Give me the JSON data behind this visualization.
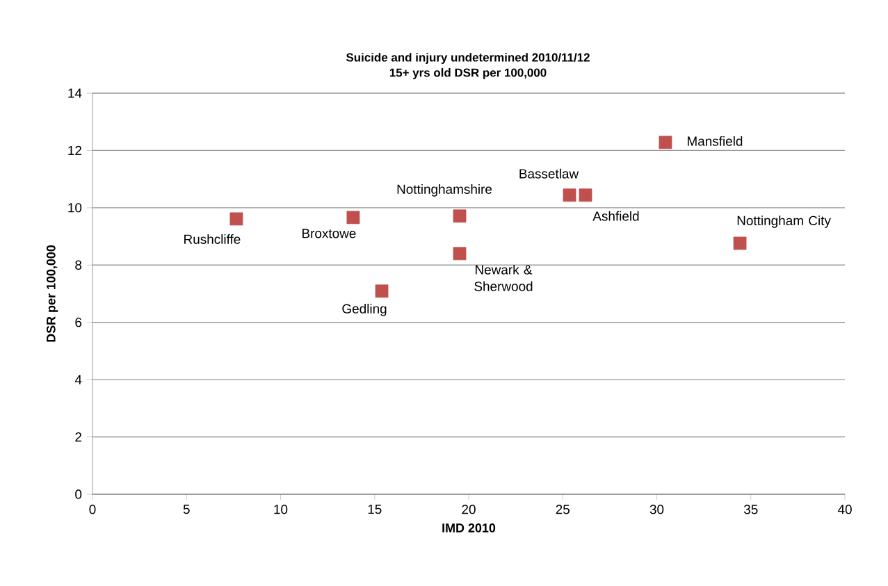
{
  "chart_data": {
    "type": "scatter",
    "title": "Suicide and injury undetermined 2010/11/12",
    "subtitle": "15+ yrs old DSR per 100,000",
    "xlabel": "IMD 2010",
    "ylabel": "DSR per 100,000",
    "x": [
      7.65,
      13.86,
      15.38,
      19.52,
      19.52,
      25.36,
      26.21,
      30.46,
      34.42
    ],
    "values": [
      9.61,
      9.66,
      7.09,
      9.71,
      8.4,
      10.44,
      10.44,
      12.28,
      8.76
    ],
    "color": "#c0504d",
    "marker": "square",
    "xlim": [
      0,
      40
    ],
    "ylim": [
      0,
      14
    ],
    "xticks": [
      0,
      5,
      10,
      15,
      20,
      25,
      30,
      35,
      40
    ],
    "yticks": [
      0,
      2,
      4,
      6,
      8,
      10,
      12,
      14
    ],
    "grid": "y",
    "annotations": [
      {
        "text": "Rushcliffe",
        "x": 7.65,
        "y": 9.61
      },
      {
        "text": "Broxtowe",
        "x": 13.86,
        "y": 9.66
      },
      {
        "text": "Gedling",
        "x": 15.38,
        "y": 7.09
      },
      {
        "text": "Nottinghamshire",
        "x": 19.52,
        "y": 9.71
      },
      {
        "text": "Newark & Sherwood",
        "x": 19.52,
        "y": 8.4
      },
      {
        "text": "Bassetlaw",
        "x": 25.36,
        "y": 10.44
      },
      {
        "text": "Ashfield",
        "x": 26.21,
        "y": 10.44
      },
      {
        "text": "Mansfield",
        "x": 30.46,
        "y": 12.28
      },
      {
        "text": "Nottingham City",
        "x": 34.42,
        "y": 8.76
      }
    ]
  }
}
